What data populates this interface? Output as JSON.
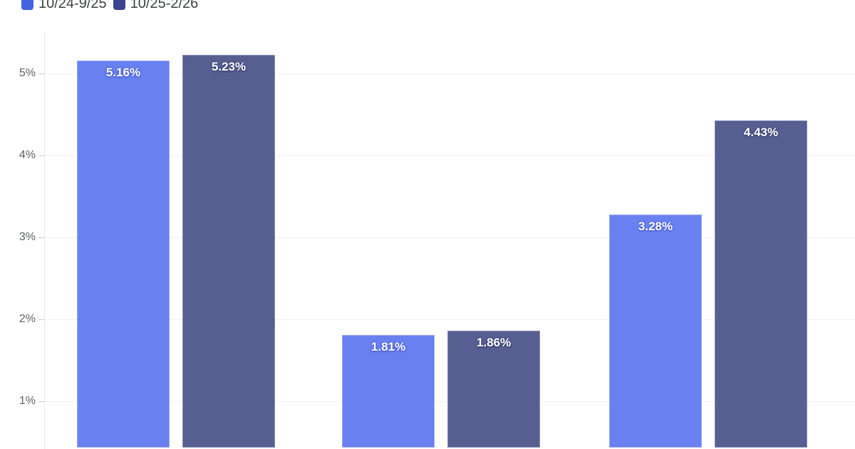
{
  "legend": {
    "position": "top-left",
    "items": [
      {
        "label": "10/24-9/25",
        "marker_color": "#4463E2"
      },
      {
        "label": "10/25-2/26",
        "marker_color": "#39458F"
      }
    ]
  },
  "chart_data": {
    "type": "bar",
    "categories": [
      "",
      "",
      ""
    ],
    "series": [
      {
        "name": "10/24-9/25",
        "values": [
          5.16,
          1.81,
          3.28
        ],
        "labels": [
          "5.16%",
          "1.81%",
          "3.28%"
        ],
        "color": "#6980F0",
        "border_color": "#9AA8F6",
        "legend_color": "#4463E2",
        "label_shadow": "#4457C9"
      },
      {
        "name": "10/25-2/26",
        "values": [
          5.23,
          1.86,
          4.43
        ],
        "labels": [
          "5.23%",
          "1.86%",
          "4.43%"
        ],
        "color": "#575F92",
        "border_color": "#868DB0",
        "legend_color": "#39458F",
        "label_shadow": "#343D6E"
      }
    ],
    "y_axis": {
      "unit": "%",
      "ticks": [
        {
          "label": "5%",
          "value": 5
        },
        {
          "label": "4%",
          "value": 4
        },
        {
          "label": "3%",
          "value": 3
        },
        {
          "label": "2%",
          "value": 2
        },
        {
          "label": "1%",
          "value": 1
        }
      ]
    },
    "ylim": [
      0,
      5.5
    ],
    "grid": "horizontal",
    "legend_position": "top-left",
    "value_label_color": "#ffffff",
    "note": "bottom of plot (0% axis and category labels) cropped out of frame"
  }
}
